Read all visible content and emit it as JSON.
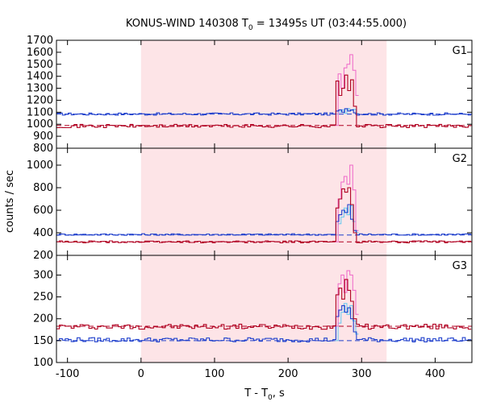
{
  "chart_data": {
    "type": "line",
    "title_main": "KONUS-WIND 140308 T",
    "title_sub": "0",
    "title_rest": " = 13495s UT (03:44:55.000)",
    "xlabel_main": "T - T",
    "xlabel_sub": "0",
    "xlabel_rest": ", s",
    "ylabel": "counts / sec",
    "xlim": [
      -115,
      450
    ],
    "xticks": [
      -100,
      0,
      100,
      200,
      300,
      400
    ],
    "xtick_labels": [
      "-100",
      "0",
      "100",
      "200",
      "300",
      "400"
    ],
    "shaded_interval": [
      0,
      334
    ],
    "colors": {
      "shade": "#fde4e7",
      "dark_red": "#a0001c",
      "dark_red_step": "#b00020",
      "pink": "#ee66c8",
      "blue": "#1e3fcc",
      "light_blue": "#62c8f0",
      "bg_level_red": "#b00020",
      "bg_level_blue": "#1e3fcc"
    },
    "panels": [
      {
        "label": "G1",
        "ylim": [
          800,
          1700
        ],
        "yticks": [
          800,
          900,
          1000,
          1100,
          1200,
          1300,
          1400,
          1500,
          1600,
          1700
        ],
        "ytick_labels": [
          "800",
          "900",
          "1000",
          "1100",
          "1200",
          "1300",
          "1400",
          "1500",
          "1600",
          "1700"
        ],
        "bg_red": 990,
        "bg_blue": 1085,
        "lc_red": {
          "base": 985,
          "noise": 14,
          "peak_t": [
            268,
            272,
            276,
            280,
            284,
            288,
            292
          ],
          "peak_v": [
            1360,
            1240,
            1300,
            1410,
            1280,
            1370,
            1150
          ]
        },
        "lc_blue": {
          "base": 1085,
          "noise": 10,
          "peak_t": [
            268,
            272,
            276,
            280,
            284,
            288,
            292
          ],
          "peak_v": [
            1110,
            1120,
            1100,
            1130,
            1110,
            1120,
            1095
          ]
        },
        "pink_peak": [
          1420,
          1300,
          1470,
          1500,
          1580,
          1450,
          1240
        ],
        "lightblue_peak": [
          1100,
          1120,
          1090,
          1130,
          1115,
          1125,
          1090
        ]
      },
      {
        "label": "G2",
        "ylim": [
          200,
          1150
        ],
        "yticks": [
          200,
          400,
          600,
          800,
          1000
        ],
        "ytick_labels": [
          "200",
          "400",
          "600",
          "800",
          "1000"
        ],
        "bg_red": 320,
        "bg_blue": 380,
        "lc_red": {
          "base": 320,
          "noise": 9,
          "peak_t": [
            268,
            272,
            276,
            280,
            284,
            288,
            292
          ],
          "peak_v": [
            620,
            700,
            790,
            760,
            800,
            650,
            400
          ]
        },
        "lc_blue": {
          "base": 385,
          "noise": 7,
          "peak_t": [
            268,
            272,
            276,
            280,
            284,
            288,
            292
          ],
          "peak_v": [
            500,
            560,
            600,
            580,
            650,
            520,
            420
          ]
        },
        "pink_peak": [
          700,
          850,
          900,
          830,
          1000,
          780,
          420
        ],
        "lightblue_peak": [
          480,
          540,
          620,
          560,
          640,
          500,
          400
        ]
      },
      {
        "label": "G3",
        "ylim": [
          100,
          345
        ],
        "yticks": [
          100,
          150,
          200,
          250,
          300
        ],
        "ytick_labels": [
          "100",
          "150",
          "200",
          "250",
          "300"
        ],
        "bg_red": 183,
        "bg_blue": 150,
        "lc_red": {
          "base": 182,
          "noise": 6,
          "peak_t": [
            268,
            272,
            276,
            280,
            284,
            288,
            292
          ],
          "peak_v": [
            255,
            270,
            245,
            290,
            265,
            240,
            200
          ]
        },
        "lc_blue": {
          "base": 152,
          "noise": 5,
          "peak_t": [
            268,
            272,
            276,
            280,
            284,
            288,
            292
          ],
          "peak_v": [
            205,
            220,
            230,
            215,
            225,
            200,
            170
          ]
        },
        "pink_peak": [
          280,
          300,
          260,
          310,
          300,
          265,
          210
        ],
        "lightblue_peak": [
          190,
          215,
          235,
          210,
          230,
          195,
          165
        ]
      }
    ]
  }
}
